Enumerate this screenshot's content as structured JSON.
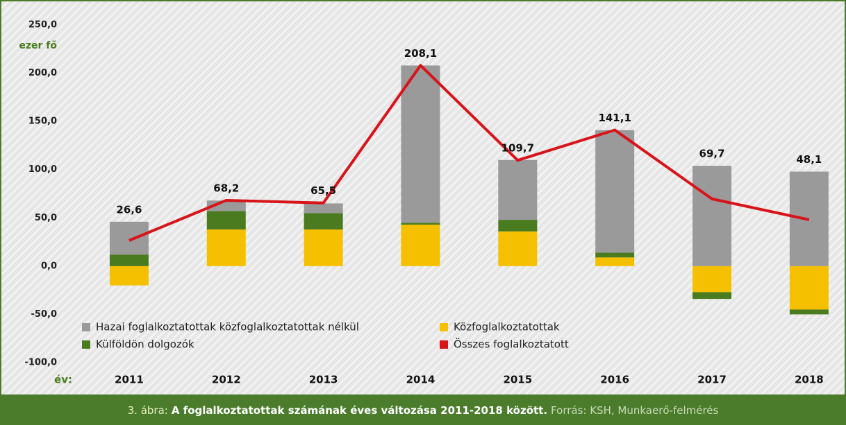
{
  "chart_data": {
    "type": "bar",
    "categories": [
      "2011",
      "2012",
      "2013",
      "2014",
      "2015",
      "2016",
      "2017",
      "2018"
    ],
    "series": [
      {
        "name": "Közfoglalkoztatottak",
        "color": "#f5c000",
        "values": [
          -20,
          38,
          38,
          43,
          36,
          9,
          -27,
          -45
        ]
      },
      {
        "name": "Külföldön dolgozók",
        "color": "#4a7c1f",
        "values": [
          12,
          19,
          17,
          2,
          12,
          5,
          -7,
          -5
        ]
      },
      {
        "name": "Hazai foglalkoztatottak közfoglalkoztatottak nélkül",
        "color": "#9a9a9a",
        "values": [
          34,
          11,
          10,
          163,
          62,
          127,
          104,
          98
        ]
      },
      {
        "name": "Összes foglalkoztatott",
        "color": "#d7141a",
        "type": "line",
        "values": [
          26.6,
          68.2,
          65.5,
          208.1,
          109.7,
          141.1,
          69.7,
          48.1
        ],
        "value_labels": [
          "26,6",
          "68,2",
          "65,5",
          "208,1",
          "109,7",
          "141,1",
          "69,7",
          "48,1"
        ]
      }
    ],
    "y_label": "ezer fő",
    "x_label": "év:",
    "ylim": [
      -100,
      250
    ],
    "yticks": [
      {
        "value": -100,
        "label": "-100,0"
      },
      {
        "value": -50,
        "label": "-50,0"
      },
      {
        "value": 0,
        "label": "0,0"
      },
      {
        "value": 50,
        "label": "50,0"
      },
      {
        "value": 100,
        "label": "100,0"
      },
      {
        "value": 150,
        "label": "150,0"
      },
      {
        "value": 200,
        "label": "200,0"
      },
      {
        "value": 250,
        "label": "250,0"
      }
    ],
    "grid": false
  },
  "caption": {
    "label": "3. ábra:",
    "title": "A foglalkoztatottak számának éves változása 2011-2018 között.",
    "source": "Forrás: KSH, Munkaerő-felmérés"
  }
}
